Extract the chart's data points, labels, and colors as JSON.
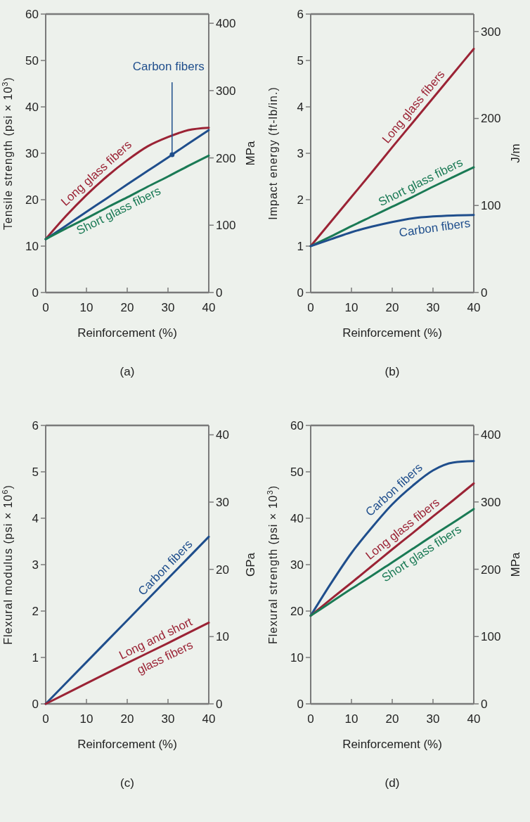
{
  "chart_data": [
    {
      "type": "line",
      "title": "(a)",
      "xlabel": "Reinforcement (%)",
      "ylabel": "Tensile strength (psi × 10$^{3}$)",
      "y2label": "MPa",
      "x": [
        0,
        5,
        10,
        15,
        20,
        25,
        30,
        35,
        40
      ],
      "xlim": [
        0,
        40
      ],
      "xticks": [
        0,
        10,
        20,
        30,
        40
      ],
      "ylim": [
        0,
        60
      ],
      "yticks": [
        0,
        10,
        20,
        30,
        40,
        50,
        60
      ],
      "y2lim": [
        0,
        413.7
      ],
      "y2ticks": [
        0,
        100,
        200,
        300,
        400
      ],
      "series": [
        {
          "name": "Long glass fibers",
          "color": "#9b2335",
          "values": [
            11.5,
            16.5,
            21,
            25,
            28.5,
            31.5,
            33.5,
            35,
            35.5
          ]
        },
        {
          "name": "Carbon fibers",
          "color": "#1f4e8c",
          "values": [
            11.5,
            14.4,
            17.4,
            20.3,
            23.3,
            26.2,
            29.1,
            32.1,
            35
          ]
        },
        {
          "name": "Short glass fibers",
          "color": "#1a7a55",
          "values": [
            11.5,
            13.8,
            16,
            18.3,
            20.5,
            22.8,
            25,
            27.3,
            29.5
          ]
        }
      ]
    },
    {
      "type": "line",
      "title": "(b)",
      "xlabel": "Reinforcement (%)",
      "ylabel": "Impact energy (ft-lb/in.)",
      "y2label": "J/m",
      "x": [
        0,
        5,
        10,
        15,
        20,
        25,
        30,
        35,
        40
      ],
      "xlim": [
        0,
        40
      ],
      "xticks": [
        0,
        10,
        20,
        30,
        40
      ],
      "ylim": [
        0,
        6
      ],
      "yticks": [
        0,
        1,
        2,
        3,
        4,
        5,
        6
      ],
      "y2lim": [
        0,
        320
      ],
      "y2ticks": [
        0,
        100,
        200,
        300
      ],
      "series": [
        {
          "name": "Long glass fibers",
          "color": "#9b2335",
          "values": [
            1,
            1.53,
            2.06,
            2.59,
            3.13,
            3.66,
            4.19,
            4.72,
            5.25
          ]
        },
        {
          "name": "Short glass fibers",
          "color": "#1a7a55",
          "values": [
            1,
            1.21,
            1.43,
            1.64,
            1.85,
            2.06,
            2.28,
            2.49,
            2.7
          ]
        },
        {
          "name": "Carbon fibers",
          "color": "#1f4e8c",
          "values": [
            1,
            1.15,
            1.3,
            1.42,
            1.52,
            1.6,
            1.64,
            1.66,
            1.67
          ]
        }
      ]
    },
    {
      "type": "line",
      "title": "(c)",
      "xlabel": "Reinforcement (%)",
      "ylabel": "Flexural modulus (psi × 10$^{6}$)",
      "y2label": "GPa",
      "x": [
        0,
        10,
        20,
        30,
        40
      ],
      "xlim": [
        0,
        40
      ],
      "xticks": [
        0,
        10,
        20,
        30,
        40
      ],
      "ylim": [
        0,
        6
      ],
      "yticks": [
        0,
        1,
        2,
        3,
        4,
        5,
        6
      ],
      "y2lim": [
        0,
        41.4
      ],
      "y2ticks": [
        0,
        10,
        20,
        30,
        40
      ],
      "series": [
        {
          "name": "Carbon fibers",
          "color": "#1f4e8c",
          "values": [
            0,
            0.9,
            1.8,
            2.7,
            3.6
          ]
        },
        {
          "name": "Long and short glass fibers",
          "color": "#9b2335",
          "values": [
            0,
            0.44,
            0.88,
            1.31,
            1.75
          ]
        }
      ]
    },
    {
      "type": "line",
      "title": "(d)",
      "xlabel": "Reinforcement (%)",
      "ylabel": "Flexural strength (psi × 10$^{3}$)",
      "y2label": "MPa",
      "x": [
        0,
        5,
        10,
        15,
        20,
        25,
        30,
        35,
        40
      ],
      "xlim": [
        0,
        40
      ],
      "xticks": [
        0,
        10,
        20,
        30,
        40
      ],
      "ylim": [
        0,
        60
      ],
      "yticks": [
        0,
        10,
        20,
        30,
        40,
        50,
        60
      ],
      "y2lim": [
        0,
        413.7
      ],
      "y2ticks": [
        0,
        100,
        200,
        300,
        400
      ],
      "series": [
        {
          "name": "Carbon fibers",
          "color": "#1f4e8c",
          "values": [
            19,
            26,
            32.5,
            38,
            43,
            47,
            50.3,
            52,
            52.3
          ]
        },
        {
          "name": "Long glass fibers",
          "color": "#9b2335",
          "values": [
            19,
            22.6,
            26.1,
            29.7,
            33.3,
            36.8,
            40.4,
            43.9,
            47.5
          ]
        },
        {
          "name": "Short glass fibers",
          "color": "#1a7a55",
          "values": [
            19,
            21.9,
            24.8,
            27.6,
            30.5,
            33.4,
            36.3,
            39.1,
            42
          ]
        }
      ]
    }
  ]
}
